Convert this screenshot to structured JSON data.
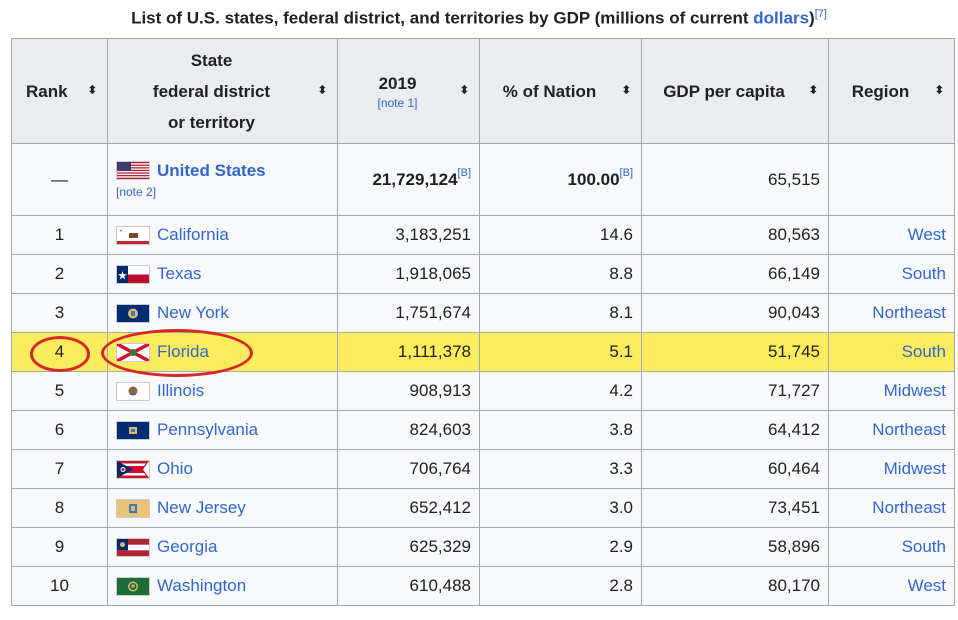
{
  "caption": {
    "prefix": "List of U.S. states, federal district, and territories by GDP (millions of current ",
    "link": "dollars",
    "suffix": ")",
    "ref": "[7]"
  },
  "headers": {
    "rank": "Rank",
    "state_line1": "State",
    "state_line2": "federal district",
    "state_line3": "or territory",
    "year": "2019",
    "year_note": "[note 1]",
    "percent": "% of Nation",
    "per_capita": "GDP per capita",
    "region": "Region",
    "sort_glyph": "⬍"
  },
  "us_row": {
    "rank": "—",
    "name": "United States",
    "note": "[note 2]",
    "gdp": "21,729,124",
    "gdp_ref": "[B]",
    "percent": "100.00",
    "percent_ref": "[B]",
    "per_capita": "65,515",
    "region": ""
  },
  "rows": [
    {
      "rank": "1",
      "state": "California",
      "gdp": "3,183,251",
      "percent": "14.6",
      "per_capita": "80,563",
      "region": "West",
      "flag": "california"
    },
    {
      "rank": "2",
      "state": "Texas",
      "gdp": "1,918,065",
      "percent": "8.8",
      "per_capita": "66,149",
      "region": "South",
      "flag": "texas"
    },
    {
      "rank": "3",
      "state": "New York",
      "gdp": "1,751,674",
      "percent": "8.1",
      "per_capita": "90,043",
      "region": "Northeast",
      "flag": "new-york"
    },
    {
      "rank": "4",
      "state": "Florida",
      "gdp": "1,111,378",
      "percent": "5.1",
      "per_capita": "51,745",
      "region": "South",
      "flag": "florida",
      "highlighted": true
    },
    {
      "rank": "5",
      "state": "Illinois",
      "gdp": "908,913",
      "percent": "4.2",
      "per_capita": "71,727",
      "region": "Midwest",
      "flag": "illinois"
    },
    {
      "rank": "6",
      "state": "Pennsylvania",
      "gdp": "824,603",
      "percent": "3.8",
      "per_capita": "64,412",
      "region": "Northeast",
      "flag": "pennsylvania"
    },
    {
      "rank": "7",
      "state": "Ohio",
      "gdp": "706,764",
      "percent": "3.3",
      "per_capita": "60,464",
      "region": "Midwest",
      "flag": "ohio"
    },
    {
      "rank": "8",
      "state": "New Jersey",
      "gdp": "652,412",
      "percent": "3.0",
      "per_capita": "73,451",
      "region": "Northeast",
      "flag": "new-jersey"
    },
    {
      "rank": "9",
      "state": "Georgia",
      "gdp": "625,329",
      "percent": "2.9",
      "per_capita": "58,896",
      "region": "South",
      "flag": "georgia"
    },
    {
      "rank": "10",
      "state": "Washington",
      "gdp": "610,488",
      "percent": "2.8",
      "per_capita": "80,170",
      "region": "West",
      "flag": "washington"
    }
  ],
  "colors": {
    "link": "#3366cc",
    "highlight": "#fbec5d",
    "annotation_circle": "#d62828"
  }
}
